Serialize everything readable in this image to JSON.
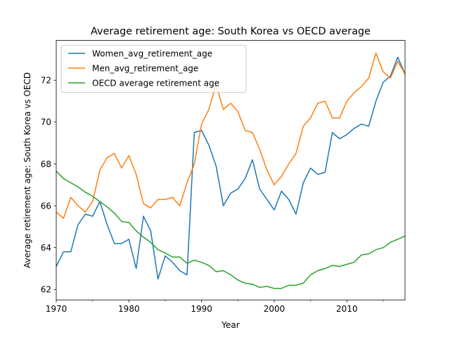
{
  "chart_data": {
    "type": "line",
    "title": "Average retirement age: South Korea vs OECD average",
    "xlabel": "Year",
    "ylabel": "Average retirement age: South Korea vs OECD",
    "xlim": [
      1970,
      2018
    ],
    "ylim": [
      61.5,
      73.9
    ],
    "xticks": [
      1970,
      1980,
      1990,
      2000,
      2010
    ],
    "xticks_minor": [
      1975,
      1985,
      1995,
      2005,
      2015
    ],
    "yticks": [
      62,
      64,
      66,
      68,
      70,
      72
    ],
    "grid": false,
    "legend_position": "upper-left",
    "x": [
      1970,
      1971,
      1972,
      1973,
      1974,
      1975,
      1976,
      1977,
      1978,
      1979,
      1980,
      1981,
      1982,
      1983,
      1984,
      1985,
      1986,
      1987,
      1988,
      1989,
      1990,
      1991,
      1992,
      1993,
      1994,
      1995,
      1996,
      1997,
      1998,
      1999,
      2000,
      2001,
      2002,
      2003,
      2004,
      2005,
      2006,
      2007,
      2008,
      2009,
      2010,
      2011,
      2012,
      2013,
      2014,
      2015,
      2016,
      2017,
      2018
    ],
    "series": [
      {
        "name": "Women_avg_retirement_age",
        "color": "#1f77b4",
        "values": [
          63.1,
          63.8,
          63.8,
          65.1,
          65.6,
          65.5,
          66.2,
          65.1,
          64.2,
          64.2,
          64.4,
          63.0,
          65.5,
          64.8,
          62.5,
          63.6,
          63.3,
          62.9,
          62.7,
          69.5,
          69.6,
          68.9,
          67.9,
          66.0,
          66.6,
          66.8,
          67.3,
          68.2,
          66.8,
          66.3,
          65.8,
          66.7,
          66.3,
          65.6,
          67.1,
          67.8,
          67.5,
          67.6,
          69.5,
          69.2,
          69.4,
          69.7,
          69.9,
          69.8,
          71.0,
          71.9,
          72.2,
          73.1,
          72.3
        ]
      },
      {
        "name": "Men_avg_retirement_age",
        "color": "#ff7f0e",
        "values": [
          65.7,
          65.4,
          66.4,
          66.0,
          65.7,
          66.2,
          67.7,
          68.3,
          68.5,
          67.8,
          68.4,
          67.5,
          66.1,
          65.9,
          66.3,
          66.3,
          66.4,
          66.0,
          67.1,
          68.0,
          69.9,
          70.6,
          71.8,
          70.6,
          70.9,
          70.5,
          69.6,
          69.5,
          68.7,
          67.7,
          67.0,
          67.4,
          68.0,
          68.5,
          69.8,
          70.2,
          70.9,
          71.0,
          70.2,
          70.2,
          71.0,
          71.4,
          71.7,
          72.1,
          73.3,
          72.4,
          72.1,
          72.9,
          72.3
        ]
      },
      {
        "name": "OECD average retirement age",
        "color": "#2ca02c",
        "values": [
          67.65,
          67.3,
          67.1,
          66.9,
          66.65,
          66.45,
          66.2,
          65.95,
          65.65,
          65.25,
          65.2,
          64.8,
          64.5,
          64.25,
          63.9,
          63.75,
          63.55,
          63.55,
          63.25,
          63.4,
          63.3,
          63.15,
          62.85,
          62.9,
          62.7,
          62.45,
          62.3,
          62.25,
          62.1,
          62.15,
          62.05,
          62.05,
          62.2,
          62.2,
          62.3,
          62.7,
          62.9,
          63.0,
          63.15,
          63.1,
          63.2,
          63.3,
          63.65,
          63.7,
          63.9,
          64.0,
          64.25,
          64.4,
          64.55
        ]
      }
    ]
  }
}
